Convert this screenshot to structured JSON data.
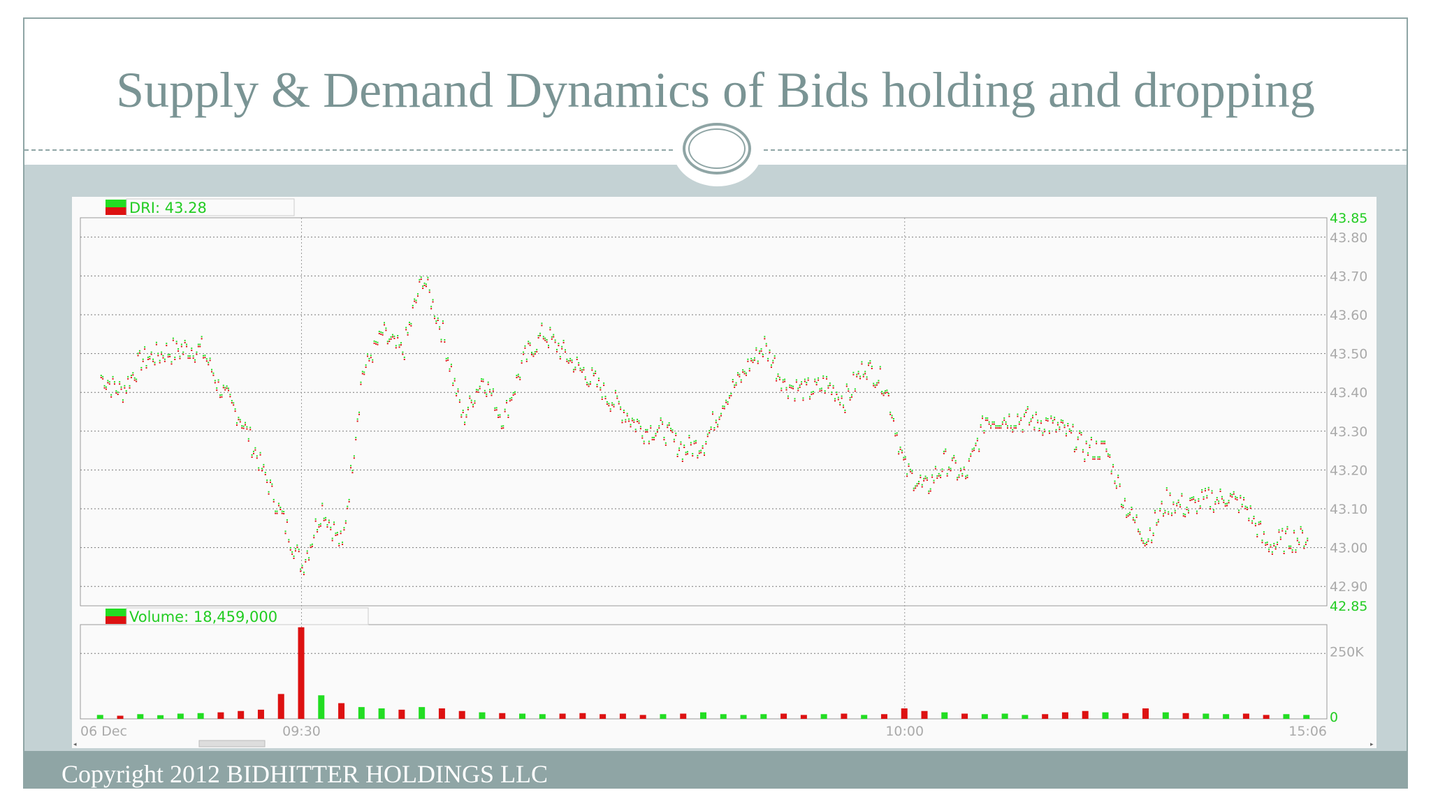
{
  "slide": {
    "title": "Supply & Demand Dynamics of Bids holding and dropping",
    "footer": "Copyright 2012 BIDHITTER HOLDINGS LLC"
  },
  "colors": {
    "up": "#22dd22",
    "down": "#dd1111",
    "accent": "#8fa5a5",
    "axis_text": "#22cc22"
  },
  "chart_data": {
    "type": "scatter",
    "price_panel": {
      "legend_label": "DRI: 43.28",
      "ylim": [
        42.85,
        43.85
      ],
      "yticks": [
        "43.85",
        "43.80",
        "43.70",
        "43.60",
        "43.50",
        "43.40",
        "43.30",
        "43.20",
        "43.10",
        "43.00",
        "42.90",
        "42.85"
      ],
      "x_time": [
        "09:20",
        "09:21",
        "09:22",
        "09:23",
        "09:24",
        "09:25",
        "09:26",
        "09:27",
        "09:28",
        "09:29",
        "09:30",
        "09:31",
        "09:32",
        "09:33",
        "09:34",
        "09:35",
        "09:36",
        "09:37",
        "09:38",
        "09:39",
        "09:40",
        "09:41",
        "09:42",
        "09:43",
        "09:44",
        "09:45",
        "09:46",
        "09:47",
        "09:48",
        "09:49",
        "09:50",
        "09:51",
        "09:52",
        "09:53",
        "09:54",
        "09:55",
        "09:56",
        "09:57",
        "09:58",
        "09:59",
        "10:00",
        "10:01",
        "10:02",
        "10:03",
        "10:04",
        "10:05",
        "10:06",
        "10:07",
        "10:08",
        "10:09",
        "10:10",
        "10:11",
        "10:12",
        "10:13",
        "10:14",
        "10:15",
        "10:16",
        "10:17",
        "10:18",
        "10:19",
        "10:20"
      ],
      "y_price": [
        43.44,
        43.4,
        43.48,
        43.5,
        43.51,
        43.51,
        43.4,
        43.33,
        43.2,
        43.08,
        42.95,
        43.1,
        43.0,
        43.45,
        43.55,
        43.5,
        43.7,
        43.55,
        43.33,
        43.44,
        43.33,
        43.48,
        43.55,
        43.5,
        43.45,
        43.4,
        43.35,
        43.3,
        43.3,
        43.25,
        43.27,
        43.38,
        43.45,
        43.52,
        43.42,
        43.4,
        43.42,
        43.38,
        43.47,
        43.42,
        43.2,
        43.15,
        43.22,
        43.18,
        43.33,
        43.33,
        43.33,
        43.32,
        43.3,
        43.25,
        43.25,
        43.1,
        43.02,
        43.12,
        43.1,
        43.12,
        43.13,
        43.1,
        43.0,
        43.02,
        43.02
      ]
    },
    "volume_panel": {
      "legend_label": "Volume: 18,459,000",
      "yticks": [
        "250K",
        "0"
      ],
      "ylim": [
        0,
        360000
      ],
      "x_time": [
        "09:20",
        "09:21",
        "09:22",
        "09:23",
        "09:24",
        "09:25",
        "09:26",
        "09:27",
        "09:28",
        "09:29",
        "09:30",
        "09:31",
        "09:32",
        "09:33",
        "09:34",
        "09:35",
        "09:36",
        "09:37",
        "09:38",
        "09:39",
        "09:40",
        "09:41",
        "09:42",
        "09:43",
        "09:44",
        "09:45",
        "09:46",
        "09:47",
        "09:48",
        "09:49",
        "09:50",
        "09:51",
        "09:52",
        "09:53",
        "09:54",
        "09:55",
        "09:56",
        "09:57",
        "09:58",
        "09:59",
        "10:00",
        "10:01",
        "10:02",
        "10:03",
        "10:04",
        "10:05",
        "10:06",
        "10:07",
        "10:08",
        "10:09",
        "10:10",
        "10:11",
        "10:12",
        "10:13",
        "10:14",
        "10:15",
        "10:16",
        "10:17",
        "10:18",
        "10:19",
        "10:20"
      ],
      "values": [
        15000,
        12000,
        18000,
        14000,
        20000,
        22000,
        25000,
        30000,
        35000,
        95000,
        350000,
        90000,
        60000,
        45000,
        40000,
        35000,
        45000,
        40000,
        30000,
        25000,
        22000,
        20000,
        18000,
        20000,
        22000,
        18000,
        20000,
        15000,
        18000,
        20000,
        25000,
        18000,
        15000,
        18000,
        20000,
        15000,
        18000,
        20000,
        15000,
        18000,
        40000,
        30000,
        25000,
        20000,
        18000,
        20000,
        15000,
        18000,
        25000,
        30000,
        25000,
        22000,
        40000,
        25000,
        22000,
        20000,
        18000,
        20000,
        15000,
        18000,
        15000
      ]
    },
    "x_ticks": [
      "06 Dec",
      "09:30",
      "10:00",
      "15:06"
    ],
    "grid": true,
    "legend_placement": "top-left"
  }
}
